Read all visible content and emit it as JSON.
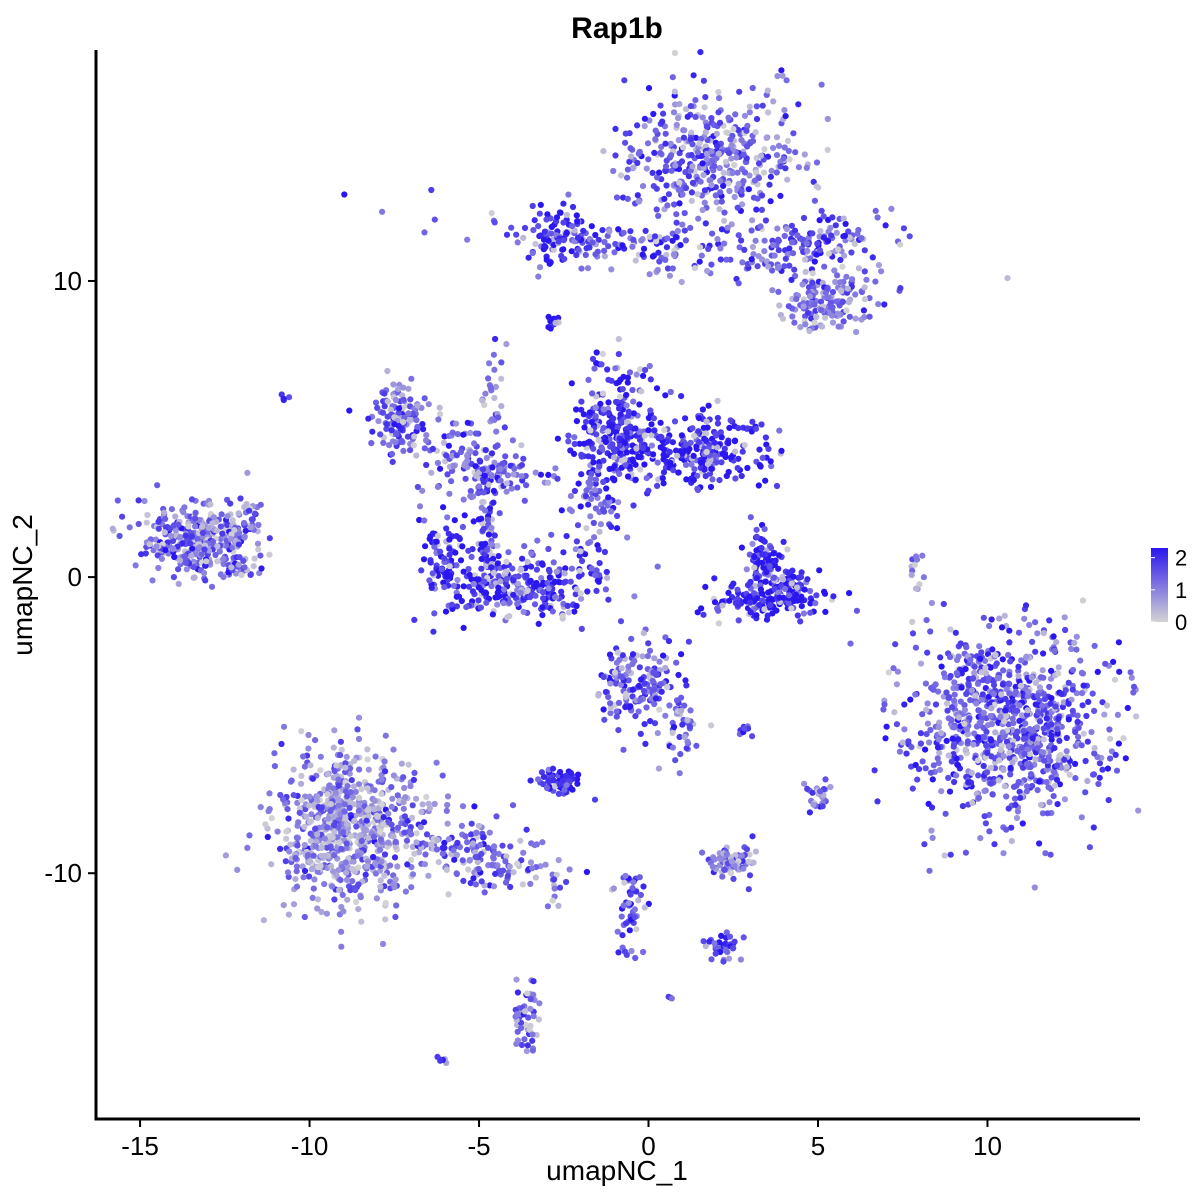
{
  "chart_data": {
    "type": "scatter",
    "title": "Rap1b",
    "xlabel": "umapNC_1",
    "ylabel": "umapNC_2",
    "xlim": [
      -16.3,
      14.5
    ],
    "ylim": [
      -18.3,
      17.8
    ],
    "x_ticks": [
      -15,
      -10,
      -5,
      0,
      5,
      10
    ],
    "x_tick_labels": [
      "-15",
      "-10",
      "-5",
      "0",
      "5",
      "10"
    ],
    "y_ticks": [
      -10,
      0,
      10
    ],
    "y_tick_labels": [
      "-10",
      "0",
      "10"
    ],
    "color_scale": {
      "low": "#d3d3d3",
      "high": "#2a16f0",
      "min": 0,
      "max": 2.3
    },
    "legend": {
      "position": "right",
      "ticks": [
        0,
        1,
        2
      ],
      "labels": [
        "0",
        "1",
        "2"
      ]
    },
    "grid": false,
    "clusters": [
      {
        "cx": 1.9,
        "cy": 14.2,
        "sx": 1.3,
        "sy": 1.2,
        "n": 420,
        "expr": 1.4
      },
      {
        "cx": 0.2,
        "cy": 11.2,
        "sx": 3.0,
        "sy": 0.45,
        "n": 180,
        "expr": 1.5,
        "angle": -8
      },
      {
        "cx": -2.6,
        "cy": 11.5,
        "sx": 0.5,
        "sy": 0.5,
        "n": 90,
        "expr": 2.0
      },
      {
        "cx": 4.8,
        "cy": 11.3,
        "sx": 1.2,
        "sy": 0.5,
        "n": 120,
        "expr": 1.5
      },
      {
        "cx": 5.4,
        "cy": 9.5,
        "sx": 0.6,
        "sy": 0.5,
        "n": 110,
        "expr": 1.2
      },
      {
        "cx": 4.6,
        "cy": 8.9,
        "sx": 0.35,
        "sy": 0.35,
        "n": 40,
        "expr": 1.1
      },
      {
        "cx": -2.8,
        "cy": 8.6,
        "sx": 0.15,
        "sy": 0.12,
        "n": 12,
        "expr": 2.1
      },
      {
        "cx": -10.7,
        "cy": 6.1,
        "sx": 0.08,
        "sy": 0.08,
        "n": 4,
        "expr": 1.8
      },
      {
        "cx": -7.4,
        "cy": 5.4,
        "sx": 0.4,
        "sy": 0.6,
        "n": 110,
        "expr": 1.5
      },
      {
        "cx": -5.5,
        "cy": 4.2,
        "sx": 1.2,
        "sy": 0.7,
        "n": 110,
        "expr": 1.5,
        "angle": -25
      },
      {
        "cx": -4.5,
        "cy": 3.5,
        "sx": 0.8,
        "sy": 0.3,
        "n": 70,
        "expr": 1.3
      },
      {
        "cx": -4.6,
        "cy": 6.2,
        "sx": 0.2,
        "sy": 1.1,
        "n": 25,
        "expr": 1.2
      },
      {
        "cx": -1.0,
        "cy": 5.0,
        "sx": 0.6,
        "sy": 1.1,
        "n": 260,
        "expr": 2.0
      },
      {
        "cx": 1.5,
        "cy": 4.3,
        "sx": 1.1,
        "sy": 0.6,
        "n": 250,
        "expr": 2.0
      },
      {
        "cx": -1.6,
        "cy": 2.6,
        "sx": 0.5,
        "sy": 0.8,
        "n": 60,
        "expr": 1.6
      },
      {
        "cx": -4.8,
        "cy": 1.2,
        "sx": 0.25,
        "sy": 1.0,
        "n": 70,
        "expr": 1.8
      },
      {
        "cx": -3.9,
        "cy": -0.3,
        "sx": 1.2,
        "sy": 0.55,
        "n": 270,
        "expr": 1.9
      },
      {
        "cx": -6.0,
        "cy": 0.6,
        "sx": 0.3,
        "sy": 0.8,
        "n": 80,
        "expr": 1.9
      },
      {
        "cx": -1.8,
        "cy": 0.7,
        "sx": 0.6,
        "sy": 0.4,
        "n": 25,
        "expr": 1.6,
        "angle": -40
      },
      {
        "cx": -13.4,
        "cy": 1.3,
        "sx": 0.9,
        "sy": 0.6,
        "n": 320,
        "expr": 1.3
      },
      {
        "cx": -12.4,
        "cy": 0.3,
        "sx": 0.5,
        "sy": 0.25,
        "n": 40,
        "expr": 1.3
      },
      {
        "cx": -11.9,
        "cy": 2.1,
        "sx": 0.25,
        "sy": 0.45,
        "n": 30,
        "expr": 1.2
      },
      {
        "cx": 3.4,
        "cy": 0.6,
        "sx": 0.25,
        "sy": 0.5,
        "n": 90,
        "expr": 2.2
      },
      {
        "cx": 3.5,
        "cy": -0.8,
        "sx": 0.9,
        "sy": 0.3,
        "n": 150,
        "expr": 2.2
      },
      {
        "cx": 4.1,
        "cy": -0.2,
        "sx": 0.35,
        "sy": 0.35,
        "n": 50,
        "expr": 2.0
      },
      {
        "cx": 7.9,
        "cy": 0.3,
        "sx": 0.12,
        "sy": 0.5,
        "n": 12,
        "expr": 1.0
      },
      {
        "cx": 10.6,
        "cy": -5.0,
        "sx": 1.5,
        "sy": 1.5,
        "n": 950,
        "expr": 1.5
      },
      {
        "cx": -0.3,
        "cy": -3.6,
        "sx": 0.6,
        "sy": 0.7,
        "n": 160,
        "expr": 1.5
      },
      {
        "cx": 0.9,
        "cy": -5.1,
        "sx": 0.3,
        "sy": 0.6,
        "n": 40,
        "expr": 1.3
      },
      {
        "cx": -2.6,
        "cy": -6.9,
        "sx": 0.3,
        "sy": 0.2,
        "n": 60,
        "expr": 2.0
      },
      {
        "cx": 2.8,
        "cy": -5.1,
        "sx": 0.12,
        "sy": 0.08,
        "n": 10,
        "expr": 1.8
      },
      {
        "cx": 5.0,
        "cy": -7.4,
        "sx": 0.2,
        "sy": 0.25,
        "n": 25,
        "expr": 1.2
      },
      {
        "cx": 2.5,
        "cy": -9.6,
        "sx": 0.4,
        "sy": 0.25,
        "n": 80,
        "expr": 1.2
      },
      {
        "cx": -8.9,
        "cy": -8.4,
        "sx": 1.1,
        "sy": 1.3,
        "n": 720,
        "expr": 1.0
      },
      {
        "cx": -5.0,
        "cy": -9.4,
        "sx": 1.3,
        "sy": 0.5,
        "n": 180,
        "expr": 1.4,
        "angle": -25
      },
      {
        "cx": -0.5,
        "cy": -11.0,
        "sx": 0.25,
        "sy": 1.0,
        "n": 50,
        "expr": 1.6
      },
      {
        "cx": 2.2,
        "cy": -12.5,
        "sx": 0.3,
        "sy": 0.25,
        "n": 35,
        "expr": 1.6
      },
      {
        "cx": -3.6,
        "cy": -14.9,
        "sx": 0.2,
        "sy": 0.7,
        "n": 50,
        "expr": 1.4
      },
      {
        "cx": -6.1,
        "cy": -16.3,
        "sx": 0.08,
        "sy": 0.06,
        "n": 6,
        "expr": 1.6
      },
      {
        "cx": 0.6,
        "cy": -14.2,
        "sx": 0.05,
        "sy": 0.05,
        "n": 3,
        "expr": 1.8
      }
    ]
  }
}
